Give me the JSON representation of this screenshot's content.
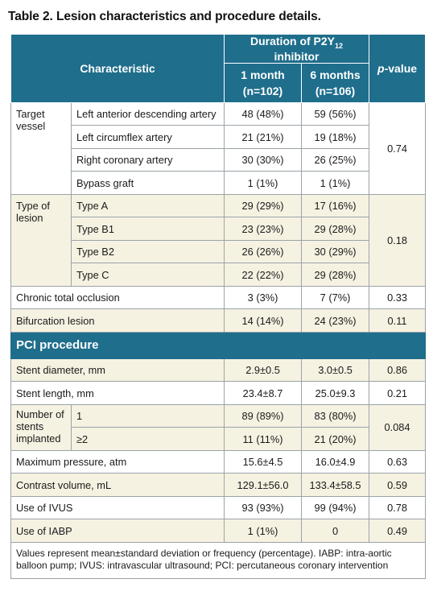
{
  "title": "Table 2. Lesion characteristics and procedure details.",
  "header": {
    "characteristic": "Characteristic",
    "duration": "Duration of P2Y",
    "duration_sub": "12",
    "duration_tail": " inhibitor",
    "pvalue_italic": "p",
    "pvalue_rest": "-value",
    "col1_line1": "1 month",
    "col1_line2": "(n=102)",
    "col2_line1": "6 months",
    "col2_line2": "(n=106)"
  },
  "groups": {
    "target_vessel": {
      "label": "Target vessel",
      "p": "0.74",
      "rows": [
        {
          "label": "Left anterior descending artery",
          "c1": "48 (48%)",
          "c2": "59 (56%)"
        },
        {
          "label": "Left circumflex artery",
          "c1": "21 (21%)",
          "c2": "19 (18%)"
        },
        {
          "label": "Right coronary artery",
          "c1": "30 (30%)",
          "c2": "26 (25%)"
        },
        {
          "label": "Bypass graft",
          "c1": "1 (1%)",
          "c2": "1 (1%)"
        }
      ]
    },
    "type_of_lesion": {
      "label": "Type of lesion",
      "p": "0.18",
      "rows": [
        {
          "label": "Type A",
          "c1": "29 (29%)",
          "c2": "17 (16%)"
        },
        {
          "label": "Type B1",
          "c1": "23 (23%)",
          "c2": "29 (28%)"
        },
        {
          "label": "Type B2",
          "c1": "26 (26%)",
          "c2": "30 (29%)"
        },
        {
          "label": "Type C",
          "c1": "22 (22%)",
          "c2": "29 (28%)"
        }
      ]
    },
    "stents": {
      "label": "Number of stents implanted",
      "p": "0.084",
      "rows": [
        {
          "label": "1",
          "c1": "89 (89%)",
          "c2": "83 (80%)"
        },
        {
          "label": "≥2",
          "c1": "11 (11%)",
          "c2": "21 (20%)"
        }
      ]
    }
  },
  "singles": {
    "cto": {
      "label": "Chronic total occlusion",
      "c1": "3 (3%)",
      "c2": "7 (7%)",
      "p": "0.33"
    },
    "bif": {
      "label": "Bifurcation lesion",
      "c1": "14 (14%)",
      "c2": "24 (23%)",
      "p": "0.11"
    },
    "diam": {
      "label": "Stent diameter, mm",
      "c1": "2.9±0.5",
      "c2": "3.0±0.5",
      "p": "0.86"
    },
    "len": {
      "label": "Stent length, mm",
      "c1": "23.4±8.7",
      "c2": "25.0±9.3",
      "p": "0.21"
    },
    "press": {
      "label": "Maximum pressure, atm",
      "c1": "15.6±4.5",
      "c2": "16.0±4.9",
      "p": "0.63"
    },
    "contrast": {
      "label": "Contrast volume, mL",
      "c1": "129.1±56.0",
      "c2": "133.4±58.5",
      "p": "0.59"
    },
    "ivus": {
      "label": "Use of IVUS",
      "c1": "93 (93%)",
      "c2": "99 (94%)",
      "p": "0.78"
    },
    "iabp": {
      "label": "Use of IABP",
      "c1": "1 (1%)",
      "c2": "0",
      "p": "0.49"
    }
  },
  "section_pci": "PCI procedure",
  "footnote": "Values represent mean±standard deviation or frequency (percentage). IABP: intra-aortic balloon pump; IVUS: intravascular ultrasound; PCI: percutaneous coronary intervention"
}
